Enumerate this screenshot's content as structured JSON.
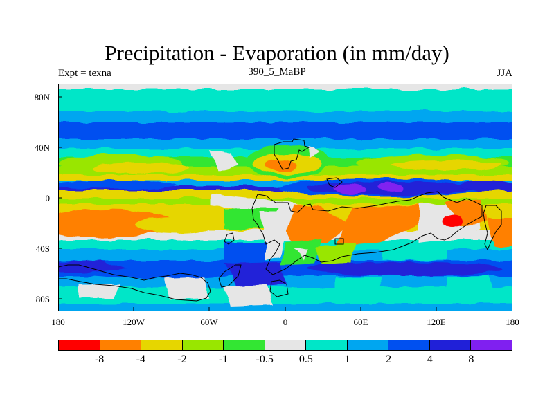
{
  "title": "Precipitation - Evaporation (in mm/day)",
  "subtitle_left": "Expt = texna",
  "subtitle_center": "390_5_MaBP",
  "subtitle_right": "JJA",
  "lat_ticks": [
    "80N",
    "40N",
    "0",
    "40S",
    "80S"
  ],
  "lon_ticks": [
    "180",
    "120W",
    "60W",
    "0",
    "60E",
    "120E",
    "180"
  ],
  "legend": {
    "labels": [
      "-8",
      "-4",
      "-2",
      "-1",
      "-0.5",
      "0.5",
      "1",
      "2",
      "4",
      "8"
    ],
    "colors": [
      "#ff0000",
      "#ff8000",
      "#e6d600",
      "#99e600",
      "#33e633",
      "#e6e6e6",
      "#00e6c8",
      "#00a6f0",
      "#0050f0",
      "#2020d8",
      "#8020f0"
    ]
  }
}
